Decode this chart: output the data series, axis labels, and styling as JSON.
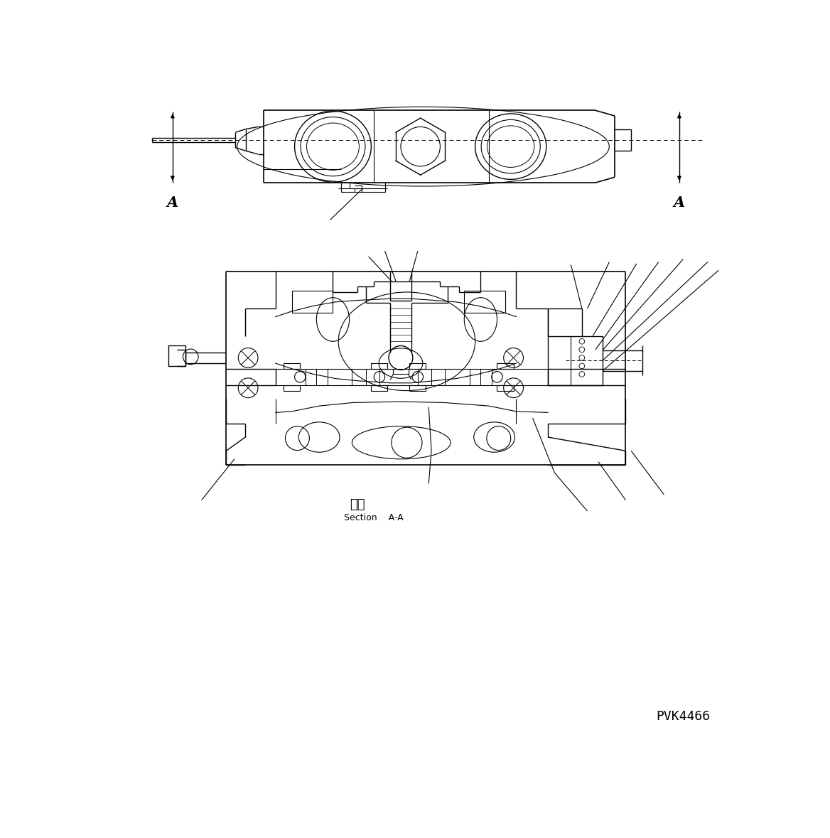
{
  "background_color": "#ffffff",
  "line_color": "#000000",
  "page_id": "PVK4466",
  "section_label_jp": "断面",
  "section_label_en": "Section    A-A",
  "label_A": "A",
  "fig_width": 11.68,
  "fig_height": 11.79,
  "dpi": 100
}
